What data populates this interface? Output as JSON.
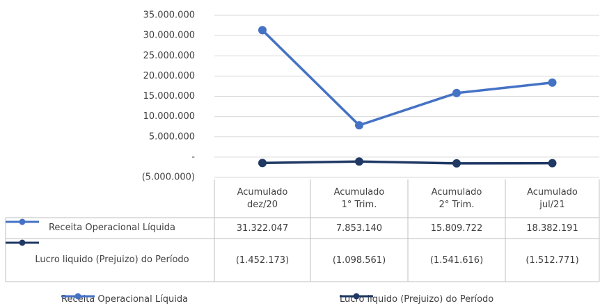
{
  "chart_data": {
    "type": "line",
    "categories": [
      "Acumulado dez/20",
      "Acumulado 1° Trim.",
      "Acumulado 2° Trim.",
      "Acumulado jul/21"
    ],
    "series": [
      {
        "name": "Receita Operacional Líquida",
        "color": "#4472c4",
        "values": [
          31322047,
          7853140,
          15809722,
          18382191
        ],
        "value_labels": [
          "31.322.047",
          "7.853.140",
          "15.809.722",
          "18.382.191"
        ]
      },
      {
        "name": "Lucro liquido (Prejuizo) do Período",
        "color": "#1f3864",
        "values": [
          -1452173,
          -1098561,
          -1541616,
          -1512771
        ],
        "value_labels": [
          "(1.452.173)",
          "(1.098.561)",
          "(1.541.616)",
          "(1.512.771)"
        ]
      }
    ],
    "ylim": [
      -5000000,
      35000000
    ],
    "yticks": [
      {
        "value": 35000000,
        "label": "35.000.000"
      },
      {
        "value": 30000000,
        "label": "30.000.000"
      },
      {
        "value": 25000000,
        "label": "25.000.000"
      },
      {
        "value": 20000000,
        "label": "20.000.000"
      },
      {
        "value": 15000000,
        "label": "15.000.000"
      },
      {
        "value": 10000000,
        "label": "10.000.000"
      },
      {
        "value": 5000000,
        "label": "5.000.000"
      },
      {
        "value": 0,
        "label": "-"
      },
      {
        "value": -5000000,
        "label": "(5.000.000)"
      }
    ],
    "grid": true,
    "legend": "bottom"
  }
}
